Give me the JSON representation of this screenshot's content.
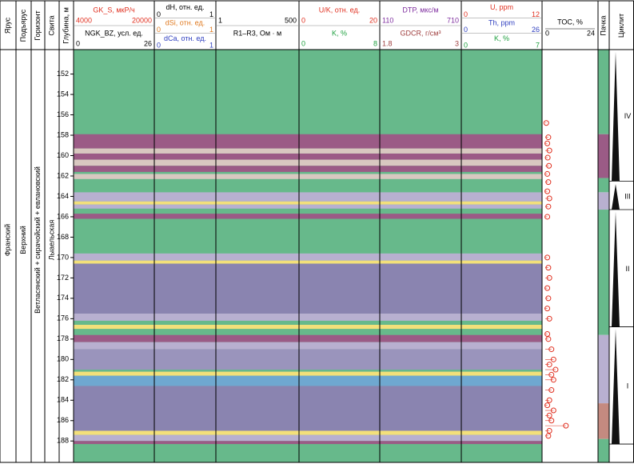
{
  "columns": [
    "Ярус",
    "Подъярус",
    "Горизонт",
    "Свита",
    "Глубина, м"
  ],
  "right_columns": [
    "Пачка",
    "Циклит"
  ],
  "stratigraphy": [
    "Франский",
    "Верхний",
    "Ветласянский + сирачойский + евлановский",
    "Лыаельская"
  ],
  "depth": {
    "range": [
      149.6,
      190.1
    ],
    "ticks": [
      152,
      154,
      156,
      158,
      160,
      162,
      164,
      166,
      168,
      170,
      172,
      174,
      176,
      178,
      180,
      182,
      184,
      186,
      188
    ]
  },
  "background": "#67b98b",
  "tracks": [
    {
      "rows": [
        {
          "label": "GK_S, мкР/ч",
          "min": 4000,
          "max": 20000,
          "color": "#e03020"
        },
        {
          "label": "NGK_BZ, усл. ед.",
          "min": 0,
          "max": 26,
          "color": "#000000"
        }
      ]
    },
    {
      "rows": [
        {
          "label": "dH, отн. ед.",
          "min": 0,
          "max": 1,
          "color": "#000000"
        },
        {
          "label": "dSi, отн. ед.",
          "min": 0,
          "max": 1,
          "color": "#e07a20"
        },
        {
          "label": "dCa, отн. ед.",
          "min": 0,
          "max": 1,
          "color": "#3040c0"
        }
      ]
    },
    {
      "rows": [
        {
          "min": 1,
          "max": 500,
          "color": "#000000"
        },
        {
          "label": "R1–R3, Ом · м",
          "color": "#000000"
        }
      ]
    },
    {
      "rows": [
        {
          "label": "U/K, отн. ед.",
          "min": 0,
          "max": 20,
          "color": "#e03020"
        },
        {
          "label": "K, %",
          "min": 0,
          "max": 8,
          "color": "#20a040"
        }
      ]
    },
    {
      "rows": [
        {
          "label": "DTP, мкс/м",
          "min": 110,
          "max": 710,
          "color": "#8030a0"
        },
        {
          "label": "GDCR, г/см³",
          "min": 1.8,
          "max": 3,
          "color": "#a04040"
        }
      ]
    },
    {
      "rows": [
        {
          "label": "U, ppm",
          "min": 0,
          "max": 12,
          "color": "#e03020"
        },
        {
          "label": "Th, ppm",
          "min": 0,
          "max": 26,
          "color": "#3040c0"
        },
        {
          "label": "K, %",
          "min": 0,
          "max": 7,
          "color": "#20a040"
        }
      ]
    }
  ],
  "toc": {
    "label": "TOC, %",
    "min": 0,
    "max": 24,
    "color": "#e03020",
    "points": [
      [
        156.8,
        0.5
      ],
      [
        158.2,
        1.5
      ],
      [
        158.8,
        1
      ],
      [
        159.5,
        2
      ],
      [
        160.2,
        1.2
      ],
      [
        161,
        1.8
      ],
      [
        161.8,
        1
      ],
      [
        162.6,
        1.5
      ],
      [
        163.5,
        1
      ],
      [
        164.2,
        2
      ],
      [
        165,
        1.5
      ],
      [
        166,
        1
      ],
      [
        170,
        1
      ],
      [
        171,
        1.5
      ],
      [
        172,
        2
      ],
      [
        173,
        1
      ],
      [
        174,
        1.5
      ],
      [
        175,
        1
      ],
      [
        176,
        2
      ],
      [
        177.5,
        1
      ],
      [
        178,
        1.5
      ],
      [
        179,
        3
      ],
      [
        180,
        4
      ],
      [
        180.5,
        2
      ],
      [
        181,
        5
      ],
      [
        181.5,
        3
      ],
      [
        182,
        4
      ],
      [
        183,
        3
      ],
      [
        184,
        2
      ],
      [
        184.5,
        1
      ],
      [
        185,
        4
      ],
      [
        185.5,
        2
      ],
      [
        186,
        3
      ],
      [
        186.5,
        10
      ],
      [
        187,
        2
      ],
      [
        187.5,
        1.5
      ]
    ]
  },
  "bands": [
    {
      "top": 157.9,
      "base": 159.3,
      "color": "#9b5b86"
    },
    {
      "top": 159.3,
      "base": 159.8,
      "color": "#d8c8c0"
    },
    {
      "top": 159.8,
      "base": 160.4,
      "color": "#9b5b86"
    },
    {
      "top": 160.4,
      "base": 161.0,
      "color": "#d8c8c0"
    },
    {
      "top": 161.0,
      "base": 161.6,
      "color": "#9b5b86"
    },
    {
      "top": 161.8,
      "base": 162.3,
      "color": "#d8c8c0"
    },
    {
      "top": 163.6,
      "base": 164.5,
      "color": "#b8b0d0"
    },
    {
      "top": 164.5,
      "base": 164.8,
      "color": "#f3e07a"
    },
    {
      "top": 164.8,
      "base": 165.2,
      "color": "#b8b0d0"
    },
    {
      "top": 165.7,
      "base": 166.2,
      "color": "#9b5b86"
    },
    {
      "top": 169.6,
      "base": 170.3,
      "color": "#b8b0d0"
    },
    {
      "top": 170.3,
      "base": 170.6,
      "color": "#f3e07a"
    },
    {
      "top": 170.6,
      "base": 175.5,
      "color": "#8a84b0"
    },
    {
      "top": 175.5,
      "base": 176.2,
      "color": "#b8b0d0"
    },
    {
      "top": 176.6,
      "base": 177.0,
      "color": "#f3e07a"
    },
    {
      "top": 177.6,
      "base": 178.3,
      "color": "#9b5b86"
    },
    {
      "top": 178.3,
      "base": 179.0,
      "color": "#b8b0d0"
    },
    {
      "top": 179.0,
      "base": 181.0,
      "color": "#9a94bc"
    },
    {
      "top": 181.2,
      "base": 181.6,
      "color": "#f3e07a"
    },
    {
      "top": 181.6,
      "base": 182.6,
      "color": "#6fa8d0"
    },
    {
      "top": 182.6,
      "base": 187.0,
      "color": "#8a84b0"
    },
    {
      "top": 187.0,
      "base": 187.4,
      "color": "#f3e07a"
    },
    {
      "top": 187.4,
      "base": 188.0,
      "color": "#b8b0d0"
    },
    {
      "top": 188.0,
      "base": 188.3,
      "color": "#9b5b86"
    }
  ],
  "units": [
    {
      "top": 149.6,
      "base": 157.9,
      "color": "#67b98b"
    },
    {
      "top": 157.9,
      "base": 162.2,
      "color": "#9b5b86"
    },
    {
      "top": 162.2,
      "base": 163.6,
      "color": "#67b98b"
    },
    {
      "top": 163.6,
      "base": 165.3,
      "color": "#b8b0d0"
    },
    {
      "top": 165.3,
      "base": 177.6,
      "color": "#67b98b"
    },
    {
      "top": 177.6,
      "base": 184.3,
      "color": "#b8b0d0"
    },
    {
      "top": 184.3,
      "base": 187.8,
      "color": "#c48a80"
    },
    {
      "top": 187.8,
      "base": 190.1,
      "color": "#67b98b"
    }
  ],
  "cycles": [
    {
      "label": "IV",
      "top": 149.8,
      "base": 162.5
    },
    {
      "label": "III",
      "top": 162.8,
      "base": 165.3
    },
    {
      "label": "II",
      "top": 165.5,
      "base": 176.8
    },
    {
      "label": "I",
      "top": 177.0,
      "base": 188.3
    }
  ]
}
